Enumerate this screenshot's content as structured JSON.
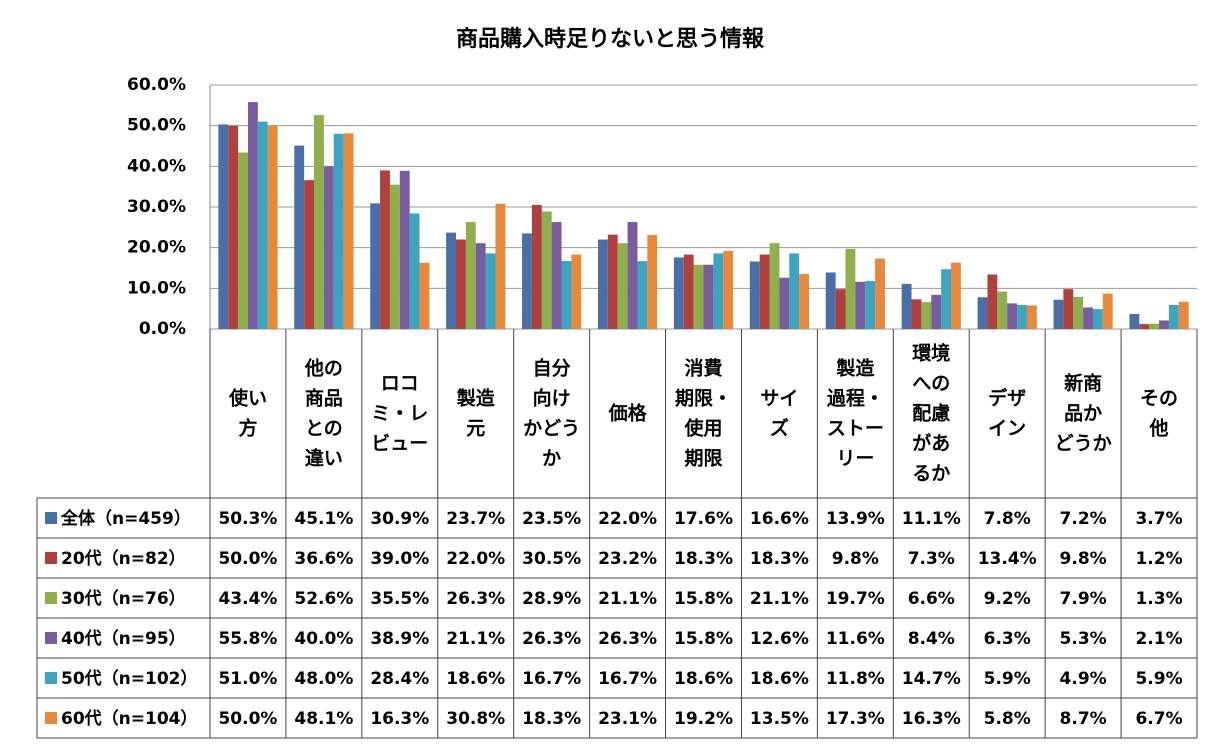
{
  "chart_data": {
    "type": "bar",
    "title": "商品購入時足りないと思う情報",
    "categories": [
      "使い\n方",
      "他の\n商品\nとの\n違い",
      "ロコ\nミ・レ\nビュー",
      "製造\n元",
      "自分\n向け\nかどう\nか",
      "価格",
      "消費\n期限・\n使用\n期限",
      "サイ\nズ",
      "製造\n過程・\nストー\nリー",
      "環境\nへの\n配慮\nがあ\nるか",
      "デザ\nイン",
      "新商\n品か\nどうか",
      "その\n他"
    ],
    "series": [
      {
        "name": "全体（n=459）",
        "color": "#4a6fa8",
        "values": [
          50.3,
          45.1,
          30.9,
          23.7,
          23.5,
          22.0,
          17.6,
          16.6,
          13.9,
          11.1,
          7.8,
          7.2,
          3.7
        ],
        "value_labels": [
          "50.3%",
          "45.1%",
          "30.9%",
          "23.7%",
          "23.5%",
          "22.0%",
          "17.6%",
          "16.6%",
          "13.9%",
          "11.1%",
          "7.8%",
          "7.2%",
          "3.7%"
        ]
      },
      {
        "name": "20代（n=82）",
        "color": "#b0403d",
        "values": [
          50.0,
          36.6,
          39.0,
          22.0,
          30.5,
          23.2,
          18.3,
          18.3,
          9.8,
          7.3,
          13.4,
          9.8,
          1.2
        ],
        "value_labels": [
          "50.0%",
          "36.6%",
          "39.0%",
          "22.0%",
          "30.5%",
          "23.2%",
          "18.3%",
          "18.3%",
          "9.8%",
          "7.3%",
          "13.4%",
          "9.8%",
          "1.2%"
        ]
      },
      {
        "name": "30代（n=76）",
        "color": "#8fae4c",
        "values": [
          43.4,
          52.6,
          35.5,
          26.3,
          28.9,
          21.1,
          15.8,
          21.1,
          19.7,
          6.6,
          9.2,
          7.9,
          1.3
        ],
        "value_labels": [
          "43.4%",
          "52.6%",
          "35.5%",
          "26.3%",
          "28.9%",
          "21.1%",
          "15.8%",
          "21.1%",
          "19.7%",
          "6.6%",
          "9.2%",
          "7.9%",
          "1.3%"
        ]
      },
      {
        "name": "40代（n=95）",
        "color": "#795c9d",
        "values": [
          55.8,
          40.0,
          38.9,
          21.1,
          26.3,
          26.3,
          15.8,
          12.6,
          11.6,
          8.4,
          6.3,
          5.3,
          2.1
        ],
        "value_labels": [
          "55.8%",
          "40.0%",
          "38.9%",
          "21.1%",
          "26.3%",
          "26.3%",
          "15.8%",
          "12.6%",
          "11.6%",
          "8.4%",
          "6.3%",
          "5.3%",
          "2.1%"
        ]
      },
      {
        "name": "50代（n=102）",
        "color": "#3ea5c1",
        "values": [
          51.0,
          48.0,
          28.4,
          18.6,
          16.7,
          16.7,
          18.6,
          18.6,
          11.8,
          14.7,
          5.9,
          4.9,
          5.9
        ],
        "value_labels": [
          "51.0%",
          "48.0%",
          "28.4%",
          "18.6%",
          "16.7%",
          "16.7%",
          "18.6%",
          "18.6%",
          "11.8%",
          "14.7%",
          "5.9%",
          "4.9%",
          "5.9%"
        ]
      },
      {
        "name": "60代（n=104）",
        "color": "#e8883a",
        "values": [
          50.0,
          48.1,
          16.3,
          30.8,
          18.3,
          23.1,
          19.2,
          13.5,
          17.3,
          16.3,
          5.8,
          8.7,
          6.7
        ],
        "value_labels": [
          "50.0%",
          "48.1%",
          "16.3%",
          "30.8%",
          "18.3%",
          "23.1%",
          "19.2%",
          "13.5%",
          "17.3%",
          "16.3%",
          "5.8%",
          "8.7%",
          "6.7%"
        ]
      }
    ],
    "ylim": [
      0,
      60
    ],
    "yticks": [
      {
        "value": 0,
        "label": "0.0%"
      },
      {
        "value": 10,
        "label": "10.0%"
      },
      {
        "value": 20,
        "label": "20.0%"
      },
      {
        "value": 30,
        "label": "30.0%"
      },
      {
        "value": 40,
        "label": "40.0%"
      },
      {
        "value": 50,
        "label": "50.0%"
      },
      {
        "value": 60,
        "label": "60.0%"
      }
    ],
    "grid": true
  }
}
